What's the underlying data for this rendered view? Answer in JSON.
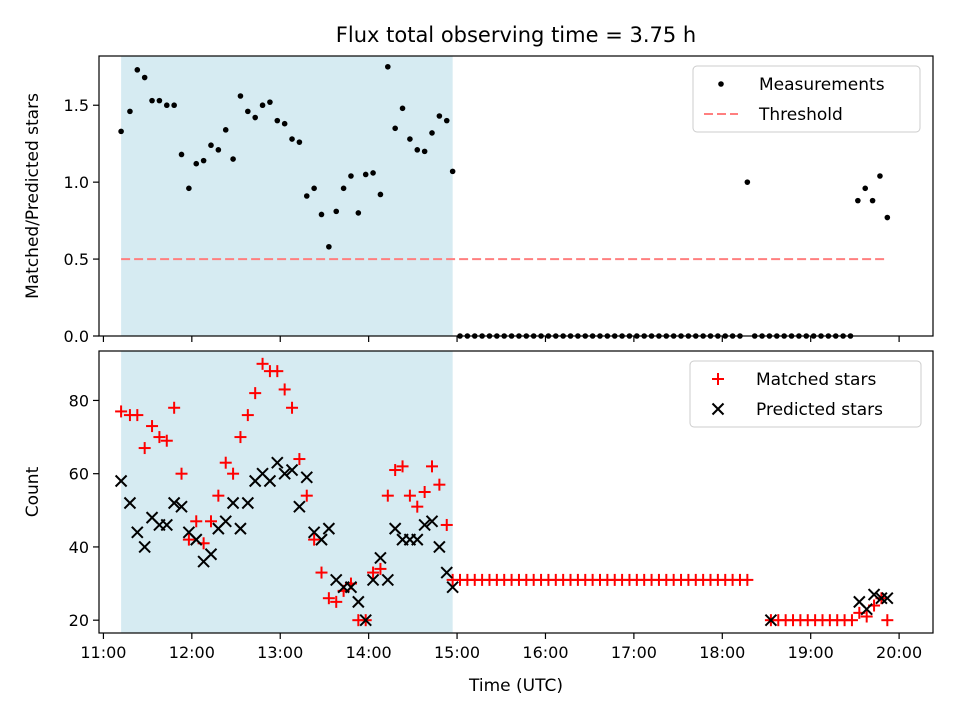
{
  "figure": {
    "title": "Flux total observing time = 3.75 h",
    "xlabel": "Time (UTC)"
  },
  "chart_data": [
    {
      "type": "scatter",
      "ylabel": "Matched/Predicted stars",
      "ylim": [
        0,
        1.82
      ],
      "yticks": [
        "0.0",
        "0.5",
        "1.0",
        "1.5"
      ],
      "xlim": [
        "10:57",
        "20:23"
      ],
      "xticks": [
        "11:00",
        "12:00",
        "13:00",
        "14:00",
        "15:00",
        "16:00",
        "17:00",
        "18:00",
        "19:00",
        "20:00"
      ],
      "highlight_span": [
        "11:12",
        "14:57"
      ],
      "highlight_color": "#add8e6",
      "legend_position": "top-right",
      "legend": [
        "Measurements",
        "Threshold"
      ],
      "threshold": {
        "value": 0.5,
        "x_range": [
          "11:12",
          "19:50"
        ],
        "color": "#ff7f7f"
      },
      "series": [
        {
          "name": "Measurements",
          "color": "#000000",
          "x": [
            "11:12",
            "11:18",
            "11:23",
            "11:28",
            "11:33",
            "11:38",
            "11:43",
            "11:48",
            "11:53",
            "11:58",
            "12:03",
            "12:08",
            "12:13",
            "12:18",
            "12:23",
            "12:28",
            "12:33",
            "12:38",
            "12:43",
            "12:48",
            "12:53",
            "12:58",
            "13:03",
            "13:08",
            "13:13",
            "13:18",
            "13:23",
            "13:28",
            "13:33",
            "13:38",
            "13:43",
            "13:48",
            "13:53",
            "13:58",
            "14:03",
            "14:08",
            "14:13",
            "14:18",
            "14:23",
            "14:28",
            "14:33",
            "14:38",
            "14:43",
            "14:48",
            "14:53",
            "14:57",
            "15:02",
            "15:07",
            "15:12",
            "15:17",
            "15:22",
            "15:27",
            "15:32",
            "15:37",
            "15:42",
            "15:47",
            "15:52",
            "15:57",
            "16:02",
            "16:07",
            "16:12",
            "16:17",
            "16:22",
            "16:27",
            "16:32",
            "16:37",
            "16:42",
            "16:47",
            "16:52",
            "16:57",
            "17:02",
            "17:07",
            "17:12",
            "17:17",
            "17:22",
            "17:27",
            "17:32",
            "17:37",
            "17:42",
            "17:47",
            "17:52",
            "17:57",
            "18:02",
            "18:07",
            "18:12",
            "18:17",
            "18:22",
            "18:27",
            "18:32",
            "18:37",
            "18:42",
            "18:47",
            "18:52",
            "18:57",
            "19:02",
            "19:07",
            "19:12",
            "19:17",
            "19:22",
            "19:27",
            "19:32",
            "19:37",
            "19:42",
            "19:47",
            "19:52"
          ],
          "y": [
            1.33,
            1.46,
            1.73,
            1.68,
            1.53,
            1.53,
            1.5,
            1.5,
            1.18,
            0.96,
            1.12,
            1.14,
            1.24,
            1.21,
            1.34,
            1.15,
            1.56,
            1.46,
            1.42,
            1.5,
            1.52,
            1.4,
            1.38,
            1.28,
            1.26,
            0.91,
            0.96,
            0.79,
            0.58,
            0.81,
            0.96,
            1.04,
            0.8,
            1.05,
            1.06,
            0.92,
            1.75,
            1.35,
            1.48,
            1.28,
            1.21,
            1.2,
            1.32,
            1.43,
            1.4,
            1.07,
            0,
            0,
            0,
            0,
            0,
            0,
            0,
            0,
            0,
            0,
            0,
            0,
            0,
            0,
            0,
            0,
            0,
            0,
            0,
            0,
            0,
            0,
            0,
            0,
            0,
            0,
            0,
            0,
            0,
            0,
            0,
            0,
            0,
            0,
            0,
            0,
            0,
            0,
            0,
            1.0,
            0,
            0,
            0,
            0,
            0,
            0,
            0,
            0,
            0,
            0,
            0,
            0,
            0,
            0,
            0.88,
            0.96,
            0.88,
            1.04,
            0.77
          ]
        }
      ]
    },
    {
      "type": "scatter",
      "ylabel": "Count",
      "ylim": [
        16.5,
        93.5
      ],
      "yticks": [
        "20",
        "40",
        "60",
        "80"
      ],
      "xlim": [
        "10:57",
        "20:23"
      ],
      "highlight_span": [
        "11:12",
        "14:57"
      ],
      "highlight_color": "#add8e6",
      "legend_position": "top-right",
      "legend": [
        "Matched stars",
        "Predicted stars"
      ],
      "series": [
        {
          "name": "Matched stars",
          "marker": "plus",
          "color": "#ff0000",
          "x": [
            "11:12",
            "11:18",
            "11:23",
            "11:28",
            "11:33",
            "11:38",
            "11:43",
            "11:48",
            "11:53",
            "11:58",
            "12:03",
            "12:08",
            "12:13",
            "12:18",
            "12:23",
            "12:28",
            "12:33",
            "12:38",
            "12:43",
            "12:48",
            "12:53",
            "12:58",
            "13:03",
            "13:08",
            "13:13",
            "13:18",
            "13:23",
            "13:28",
            "13:33",
            "13:38",
            "13:43",
            "13:48",
            "13:53",
            "13:58",
            "14:03",
            "14:08",
            "14:13",
            "14:18",
            "14:23",
            "14:28",
            "14:33",
            "14:38",
            "14:43",
            "14:48",
            "14:53",
            "14:57",
            "15:02",
            "15:07",
            "15:12",
            "15:17",
            "15:22",
            "15:27",
            "15:32",
            "15:37",
            "15:42",
            "15:47",
            "15:52",
            "15:57",
            "16:02",
            "16:07",
            "16:12",
            "16:17",
            "16:22",
            "16:27",
            "16:32",
            "16:37",
            "16:42",
            "16:47",
            "16:52",
            "16:57",
            "17:02",
            "17:07",
            "17:12",
            "17:17",
            "17:22",
            "17:27",
            "17:32",
            "17:37",
            "17:42",
            "17:47",
            "17:52",
            "17:57",
            "18:02",
            "18:07",
            "18:12",
            "18:17",
            "18:33",
            "18:38",
            "18:43",
            "18:48",
            "18:53",
            "18:58",
            "19:03",
            "19:08",
            "19:13",
            "19:18",
            "19:23",
            "19:28",
            "19:33",
            "19:38",
            "19:43",
            "19:48",
            "19:52"
          ],
          "y": [
            77,
            76,
            76,
            67,
            73,
            70,
            69,
            78,
            60,
            42,
            47,
            41,
            47,
            54,
            63,
            60,
            70,
            76,
            82,
            90,
            88,
            88,
            83,
            78,
            64,
            54,
            42,
            33,
            26,
            25,
            28,
            30,
            20,
            20,
            33,
            34,
            54,
            61,
            62,
            54,
            51,
            55,
            62,
            57,
            46,
            31,
            31,
            31,
            31,
            31,
            31,
            31,
            31,
            31,
            31,
            31,
            31,
            31,
            31,
            31,
            31,
            31,
            31,
            31,
            31,
            31,
            31,
            31,
            31,
            31,
            31,
            31,
            31,
            31,
            31,
            31,
            31,
            31,
            31,
            31,
            31,
            31,
            31,
            31,
            31,
            31,
            20,
            20,
            20,
            20,
            20,
            20,
            20,
            20,
            20,
            20,
            20,
            20,
            22,
            21,
            24,
            26,
            20
          ]
        },
        {
          "name": "Predicted stars",
          "marker": "x",
          "color": "#000000",
          "x": [
            "11:12",
            "11:18",
            "11:23",
            "11:28",
            "11:33",
            "11:38",
            "11:43",
            "11:48",
            "11:53",
            "11:58",
            "12:03",
            "12:08",
            "12:13",
            "12:18",
            "12:23",
            "12:28",
            "12:33",
            "12:38",
            "12:43",
            "12:48",
            "12:53",
            "12:58",
            "13:03",
            "13:08",
            "13:13",
            "13:18",
            "13:23",
            "13:28",
            "13:33",
            "13:38",
            "13:43",
            "13:48",
            "13:53",
            "13:58",
            "14:03",
            "14:08",
            "14:13",
            "14:18",
            "14:23",
            "14:28",
            "14:33",
            "14:38",
            "14:43",
            "14:48",
            "14:53",
            "14:57",
            "18:33",
            "19:33",
            "19:38",
            "19:43",
            "19:48",
            "19:52"
          ],
          "y": [
            58,
            52,
            44,
            40,
            48,
            46,
            46,
            52,
            51,
            44,
            42,
            36,
            38,
            45,
            47,
            52,
            45,
            52,
            58,
            60,
            58,
            63,
            60,
            61,
            51,
            59,
            44,
            42,
            45,
            31,
            29,
            29,
            25,
            20,
            31,
            37,
            31,
            45,
            42,
            42,
            42,
            46,
            47,
            40,
            33,
            29,
            20,
            25,
            23,
            27,
            26,
            26
          ]
        }
      ]
    }
  ]
}
